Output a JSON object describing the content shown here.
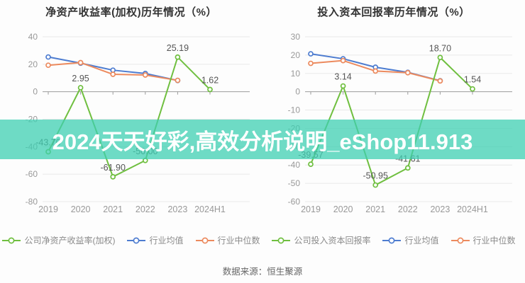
{
  "banner": {
    "text": "2024天天好彩,高效分析说明_eShop11.913",
    "bg_color": "rgba(62,207,178,0.75)",
    "text_color": "#ffffff"
  },
  "footer": {
    "source_label": "数据来源：恒生聚源"
  },
  "colors": {
    "company_green": "#6fbf3f",
    "industry_mean_blue": "#4d7cd0",
    "industry_median_orange": "#ec8a5e",
    "grid": "#e9e9e9",
    "axis": "#9b9b9b",
    "tick_text": "#999999",
    "label_text": "#555555",
    "title_text": "#333333",
    "legend_text": "#8a8a8a"
  },
  "chart_data": [
    {
      "type": "line",
      "title": "净资产收益率(加权)历年情况（%）",
      "categories": [
        "2019",
        "2020",
        "2021",
        "2022",
        "2023",
        "2024H1"
      ],
      "ylim": [
        -80,
        40
      ],
      "yticks": [
        40,
        20,
        0,
        -20,
        -40,
        -60,
        -80
      ],
      "grid": true,
      "legend_position": "bottom",
      "series": [
        {
          "name": "公司净资产收益率(加权)",
          "color_key": "company_green",
          "show_labels": true,
          "values": [
            -43.7,
            2.95,
            -61.9,
            -50.0,
            25.19,
            1.62
          ],
          "labels": [
            "-43.70",
            "2.95",
            "-61.90",
            "-50.00",
            "25.19",
            "1.62"
          ]
        },
        {
          "name": "行业均值",
          "color_key": "industry_mean_blue",
          "show_labels": false,
          "values": [
            25.3,
            20.8,
            15.7,
            13.3,
            8.2,
            null
          ]
        },
        {
          "name": "行业中位数",
          "color_key": "industry_median_orange",
          "show_labels": false,
          "values": [
            19.3,
            21.2,
            12.7,
            12.2,
            8.3,
            null
          ]
        }
      ]
    },
    {
      "type": "line",
      "title": "投入资本回报率历年情况（%）",
      "categories": [
        "2019",
        "2020",
        "2021",
        "2022",
        "2023",
        "2024H1"
      ],
      "ylim": [
        -60,
        30
      ],
      "yticks": [
        30,
        20,
        10,
        0,
        -10,
        -20,
        -30,
        -40,
        -50,
        -60
      ],
      "grid": true,
      "legend_position": "bottom",
      "series": [
        {
          "name": "公司投入资本回报率",
          "color_key": "company_green",
          "show_labels": true,
          "values": [
            -39.57,
            3.14,
            -50.95,
            -41.61,
            18.7,
            1.54
          ],
          "labels": [
            "-39.57",
            "3.14",
            "-50.95",
            "-41.61",
            "18.70",
            "1.54"
          ]
        },
        {
          "name": "行业均值",
          "color_key": "industry_mean_blue",
          "show_labels": false,
          "values": [
            20.7,
            18.0,
            13.4,
            10.6,
            6.0,
            null
          ]
        },
        {
          "name": "行业中位数",
          "color_key": "industry_median_orange",
          "show_labels": false,
          "values": [
            15.5,
            17.0,
            11.3,
            10.4,
            5.9,
            null
          ]
        }
      ]
    }
  ]
}
